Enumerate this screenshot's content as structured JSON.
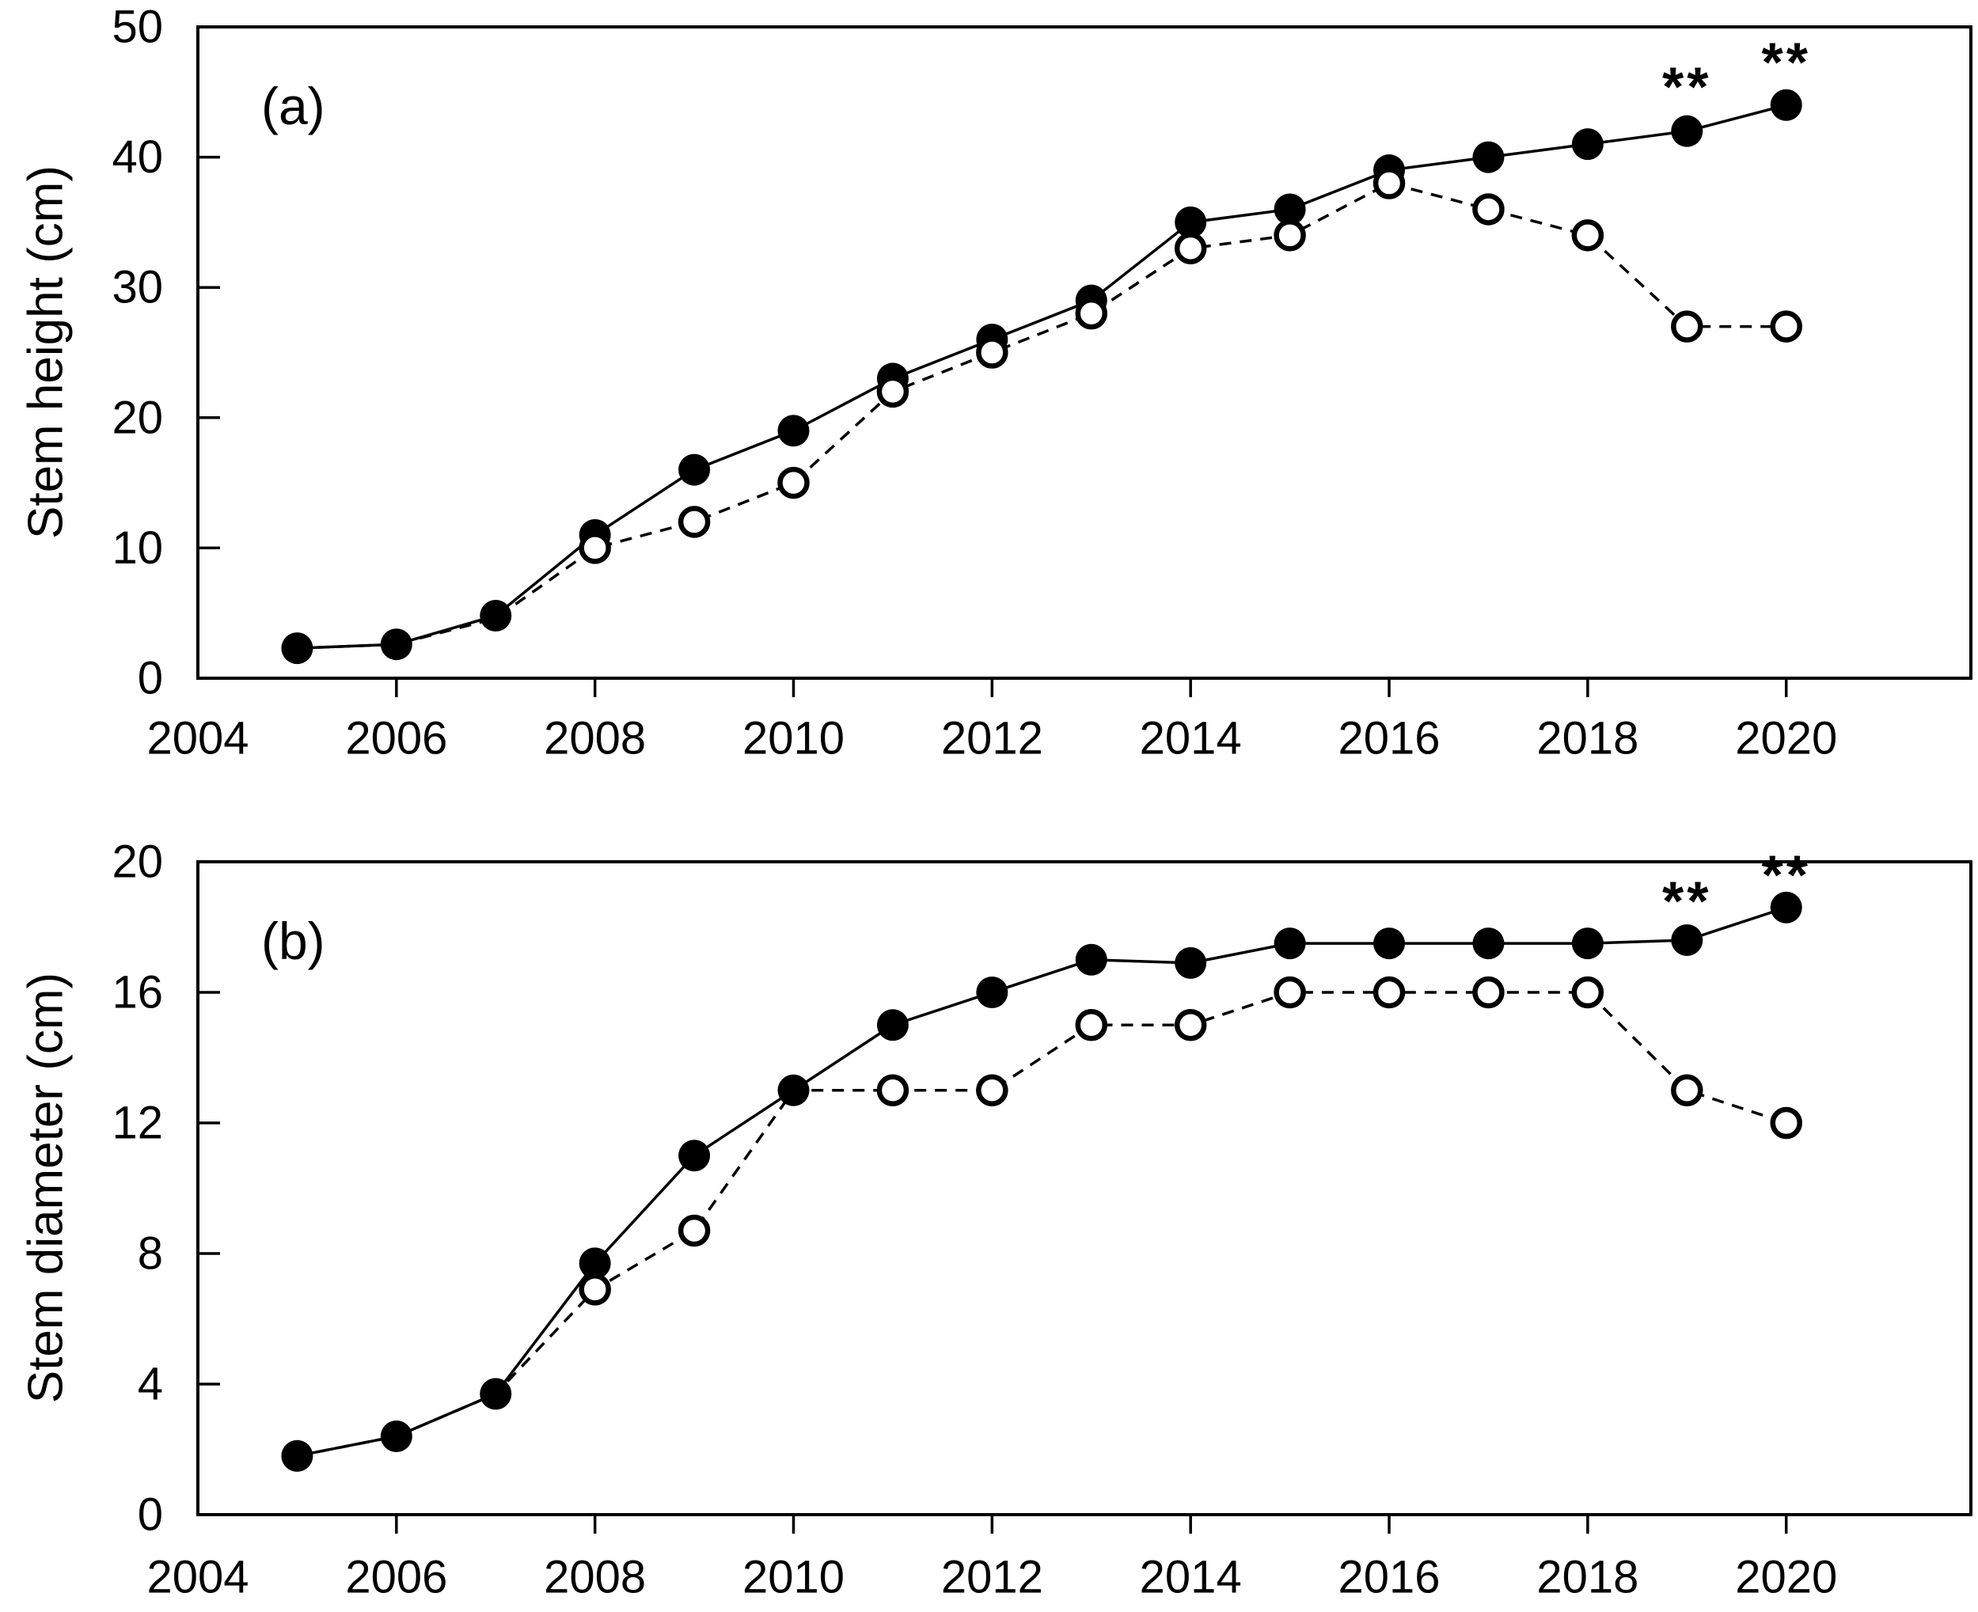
{
  "figure": {
    "background": "#ffffff",
    "foreground": "#000000",
    "panels_count": 2
  },
  "chart_data": [
    {
      "type": "line",
      "panel_label": "(a)",
      "ylabel": "Stem height (cm)",
      "xlabel": "",
      "ylim": [
        0,
        50
      ],
      "ytick_labels": [
        "0",
        "10",
        "20",
        "30",
        "40",
        "50"
      ],
      "ytick_values": [
        0,
        10,
        20,
        30,
        40,
        50
      ],
      "xlim": [
        2004,
        2021.86
      ],
      "xtick_labels": [
        "2004",
        "2006",
        "2008",
        "2010",
        "2012",
        "2014",
        "2016",
        "2018",
        "2020"
      ],
      "xtick_values": [
        2004,
        2006,
        2008,
        2010,
        2012,
        2014,
        2016,
        2018,
        2020
      ],
      "x": [
        2005,
        2006,
        2007,
        2008,
        2009,
        2010,
        2011,
        2012,
        2013,
        2014,
        2015,
        2016,
        2017,
        2018,
        2019,
        2020
      ],
      "grid": false,
      "legend": "none",
      "series": [
        {
          "name": "filled-circle-solid-line",
          "marker": "filled-circle",
          "line_style": "solid",
          "color": "#000000",
          "values": [
            2.3,
            2.6,
            4.8,
            11,
            16,
            19,
            23,
            26,
            29,
            35,
            36,
            39,
            40,
            41,
            42,
            44
          ]
        },
        {
          "name": "open-circle-dashed-line",
          "marker": "open-circle",
          "line_style": "dashed",
          "color": "#000000",
          "values": [
            2.3,
            2.6,
            4.6,
            10,
            12,
            15,
            22,
            25,
            28,
            33,
            34,
            38,
            36,
            34,
            27,
            27
          ]
        }
      ],
      "annotations": [
        {
          "x": 2019,
          "y": 45.4,
          "text": "**"
        },
        {
          "x": 2020,
          "y": 47.3,
          "text": "**"
        }
      ]
    },
    {
      "type": "line",
      "panel_label": "(b)",
      "ylabel": "Stem diameter (cm)",
      "xlabel": "",
      "ylim": [
        0,
        20
      ],
      "ytick_labels": [
        "0",
        "4",
        "8",
        "12",
        "16",
        "20"
      ],
      "ytick_values": [
        0,
        4,
        8,
        12,
        16,
        20
      ],
      "xlim": [
        2004,
        2021.86
      ],
      "xtick_labels": [
        "2004",
        "2006",
        "2008",
        "2010",
        "2012",
        "2014",
        "2016",
        "2018",
        "2020"
      ],
      "xtick_values": [
        2004,
        2006,
        2008,
        2010,
        2012,
        2014,
        2016,
        2018,
        2020
      ],
      "x": [
        2005,
        2006,
        2007,
        2008,
        2009,
        2010,
        2011,
        2012,
        2013,
        2014,
        2015,
        2016,
        2017,
        2018,
        2019,
        2020
      ],
      "grid": false,
      "legend": "none",
      "series": [
        {
          "name": "filled-circle-solid-line",
          "marker": "filled-circle",
          "line_style": "solid",
          "color": "#000000",
          "values": [
            1.8,
            2.4,
            3.7,
            7.7,
            11,
            13,
            15,
            16,
            17,
            16.9,
            17.5,
            17.5,
            17.5,
            17.5,
            17.6,
            18.6
          ]
        },
        {
          "name": "open-circle-dashed-line",
          "marker": "open-circle",
          "line_style": "dashed",
          "color": "#000000",
          "values": [
            1.8,
            2.4,
            3.7,
            6.9,
            8.7,
            13,
            13,
            13,
            15,
            15,
            16,
            16,
            16,
            16,
            13,
            12
          ]
        }
      ],
      "annotations": [
        {
          "x": 2019,
          "y": 18.8,
          "text": "**"
        },
        {
          "x": 2020,
          "y": 19.6,
          "text": "**"
        }
      ]
    }
  ]
}
